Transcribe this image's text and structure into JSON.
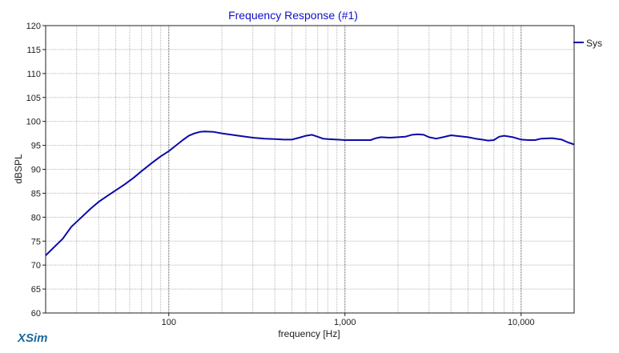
{
  "chart_data": {
    "type": "line",
    "title": "Frequency Response (#1)",
    "xlabel": "frequency [Hz]",
    "ylabel": "dBSPL",
    "x_scale": "log",
    "xlim": [
      20,
      20000
    ],
    "ylim": [
      60,
      120
    ],
    "y_ticks": [
      60,
      65,
      70,
      75,
      80,
      85,
      90,
      95,
      100,
      105,
      110,
      115,
      120
    ],
    "x_tick_labels": [
      {
        "value": 100,
        "label": "100"
      },
      {
        "value": 1000,
        "label": "1,000"
      },
      {
        "value": 10000,
        "label": "10,000"
      }
    ],
    "grid": true,
    "legend_position": "top-right",
    "series": [
      {
        "name": "Sys",
        "color": "#0a0aa8",
        "points": [
          [
            20,
            72
          ],
          [
            22,
            73.5
          ],
          [
            25,
            75.5
          ],
          [
            28,
            78
          ],
          [
            32,
            80
          ],
          [
            36,
            81.8
          ],
          [
            40,
            83.2
          ],
          [
            45,
            84.5
          ],
          [
            50,
            85.6
          ],
          [
            56,
            86.8
          ],
          [
            63,
            88.2
          ],
          [
            70,
            89.6
          ],
          [
            80,
            91.3
          ],
          [
            90,
            92.7
          ],
          [
            100,
            93.8
          ],
          [
            110,
            95
          ],
          [
            120,
            96.1
          ],
          [
            130,
            97
          ],
          [
            140,
            97.5
          ],
          [
            150,
            97.8
          ],
          [
            160,
            97.9
          ],
          [
            180,
            97.8
          ],
          [
            200,
            97.5
          ],
          [
            250,
            97
          ],
          [
            300,
            96.6
          ],
          [
            350,
            96.4
          ],
          [
            400,
            96.3
          ],
          [
            450,
            96.2
          ],
          [
            500,
            96.2
          ],
          [
            550,
            96.6
          ],
          [
            600,
            97
          ],
          [
            650,
            97.2
          ],
          [
            700,
            96.8
          ],
          [
            750,
            96.4
          ],
          [
            800,
            96.3
          ],
          [
            900,
            96.2
          ],
          [
            1000,
            96.1
          ],
          [
            1100,
            96.1
          ],
          [
            1200,
            96.1
          ],
          [
            1400,
            96.1
          ],
          [
            1500,
            96.5
          ],
          [
            1600,
            96.7
          ],
          [
            1800,
            96.6
          ],
          [
            2000,
            96.7
          ],
          [
            2200,
            96.8
          ],
          [
            2400,
            97.2
          ],
          [
            2600,
            97.3
          ],
          [
            2800,
            97.2
          ],
          [
            3000,
            96.7
          ],
          [
            3300,
            96.4
          ],
          [
            3600,
            96.7
          ],
          [
            4000,
            97.1
          ],
          [
            4500,
            96.9
          ],
          [
            5000,
            96.7
          ],
          [
            5500,
            96.4
          ],
          [
            6000,
            96.2
          ],
          [
            6500,
            96
          ],
          [
            7000,
            96.1
          ],
          [
            7500,
            96.8
          ],
          [
            8000,
            97
          ],
          [
            9000,
            96.7
          ],
          [
            10000,
            96.2
          ],
          [
            11000,
            96.1
          ],
          [
            12000,
            96.1
          ],
          [
            13000,
            96.4
          ],
          [
            15000,
            96.5
          ],
          [
            17000,
            96.2
          ],
          [
            18500,
            95.6
          ],
          [
            20000,
            95.2
          ]
        ]
      }
    ]
  },
  "colors": {
    "title": "#1010c8",
    "line": "#0a0aa8",
    "grid_minor": "#b5b5b5",
    "grid_major": "#4a4a4a",
    "axis_text": "#202020",
    "logo": "#1a6a9a"
  },
  "branding": {
    "logo_text": "XSim"
  }
}
